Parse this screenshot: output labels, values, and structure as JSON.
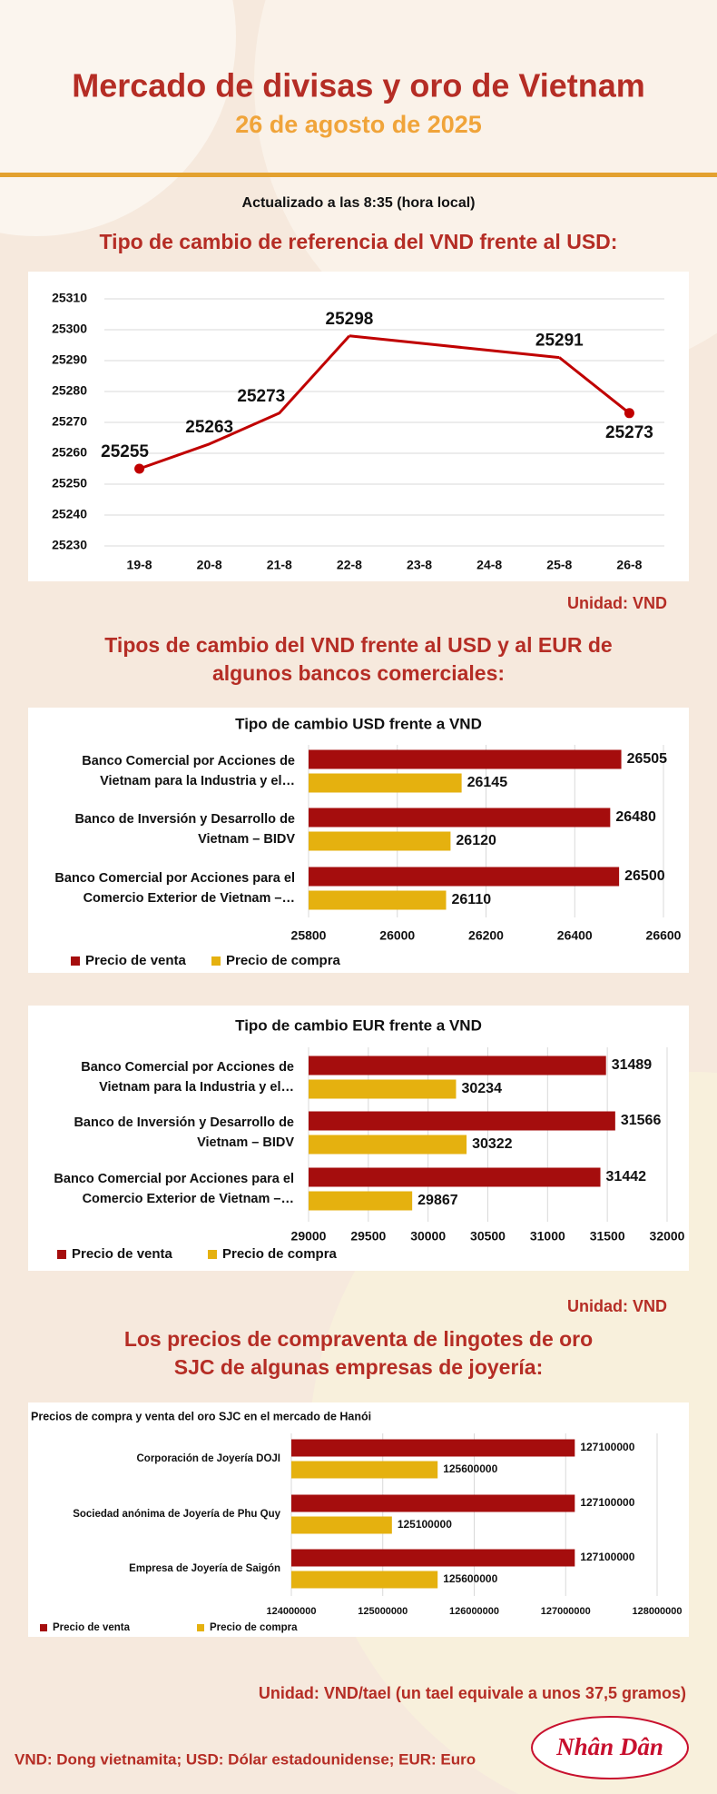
{
  "header": {
    "title": "Mercado de divisas y oro de Vietnam",
    "date": "26 de agosto de 2025",
    "updated": "Actualizado a las 8:35 (hora local)"
  },
  "sections": [
    {
      "heading": [
        "Tipo de cambio de referencia del VND frente al USD:"
      ],
      "unit": "Unidad: VND"
    },
    {
      "heading": [
        "Tipos de cambio del VND frente al USD y al EUR de",
        "algunos bancos comerciales:"
      ],
      "unit": "Unidad: VND"
    },
    {
      "heading": [
        "Los precios de compraventa de lingotes de oro",
        "SJC de algunas empresas de joyería:"
      ],
      "unit": "Unidad: VND/tael (un tael equivale a unos 37,5 gramos)"
    }
  ],
  "footer": {
    "note": "VND: Dong vietnamita; USD: Dólar estadounidense; EUR: Euro",
    "logo": "Nhân Dân"
  },
  "chart_data": [
    {
      "type": "line",
      "categories": [
        "19-8",
        "20-8",
        "21-8",
        "22-8",
        "23-8",
        "24-8",
        "25-8",
        "26-8"
      ],
      "values": [
        25255,
        25263,
        25273,
        25298,
        null,
        null,
        25291,
        25273
      ],
      "color": "#c00000",
      "ylim": [
        25230,
        25310
      ],
      "yticks": [
        25230,
        25240,
        25250,
        25260,
        25270,
        25280,
        25290,
        25300,
        25310
      ],
      "grid": true
    },
    {
      "type": "hbar",
      "title": "Tipo de cambio USD frente a VND",
      "categories": [
        [
          "Banco Comercial por Acciones de",
          "Vietnam para la Industria y el…"
        ],
        [
          "Banco de Inversión y Desarrollo de",
          "Vietnam – BIDV"
        ],
        [
          "Banco Comercial por Acciones para el",
          "Comercio Exterior de Vietnam –…"
        ]
      ],
      "series": [
        {
          "name": "Precio de venta",
          "color": "#a50d0d",
          "values": [
            26505,
            26480,
            26500
          ]
        },
        {
          "name": "Precio de compra",
          "color": "#e5b10f",
          "values": [
            26145,
            26120,
            26110
          ]
        }
      ],
      "xlim": [
        25800,
        26600
      ],
      "xticks": [
        25800,
        26000,
        26200,
        26400,
        26600
      ],
      "grid": true
    },
    {
      "type": "hbar",
      "title": "Tipo de cambio EUR frente a VND",
      "categories": [
        [
          "Banco Comercial por Acciones de",
          "Vietnam para la Industria y el…"
        ],
        [
          "Banco de Inversión y Desarrollo de",
          "Vietnam – BIDV"
        ],
        [
          "Banco Comercial por Acciones para el",
          "Comercio Exterior de Vietnam –…"
        ]
      ],
      "series": [
        {
          "name": "Precio de venta",
          "color": "#a50d0d",
          "values": [
            31489,
            31566,
            31442
          ]
        },
        {
          "name": "Precio de compra",
          "color": "#e5b10f",
          "values": [
            30234,
            30322,
            29867
          ]
        }
      ],
      "xlim": [
        29000,
        32000
      ],
      "xticks": [
        29000,
        29500,
        30000,
        30500,
        31000,
        31500,
        32000
      ],
      "grid": true
    },
    {
      "type": "hbar",
      "title": "Precios de compra y venta del oro SJC en el mercado de Hanói",
      "categories": [
        [
          "Corporación de Joyería DOJI"
        ],
        [
          "Sociedad anónima de Joyería de Phu Quy"
        ],
        [
          "Empresa de Joyería de Saigón"
        ]
      ],
      "series": [
        {
          "name": "Precio de venta",
          "color": "#a50d0d",
          "values": [
            127100000,
            127100000,
            127100000
          ]
        },
        {
          "name": "Precio de compra",
          "color": "#e5b10f",
          "values": [
            125600000,
            125100000,
            125600000
          ]
        }
      ],
      "xlim": [
        124000000,
        128000000
      ],
      "xticks": [
        124000000,
        125000000,
        126000000,
        127000000,
        128000000
      ],
      "grid": true
    }
  ]
}
